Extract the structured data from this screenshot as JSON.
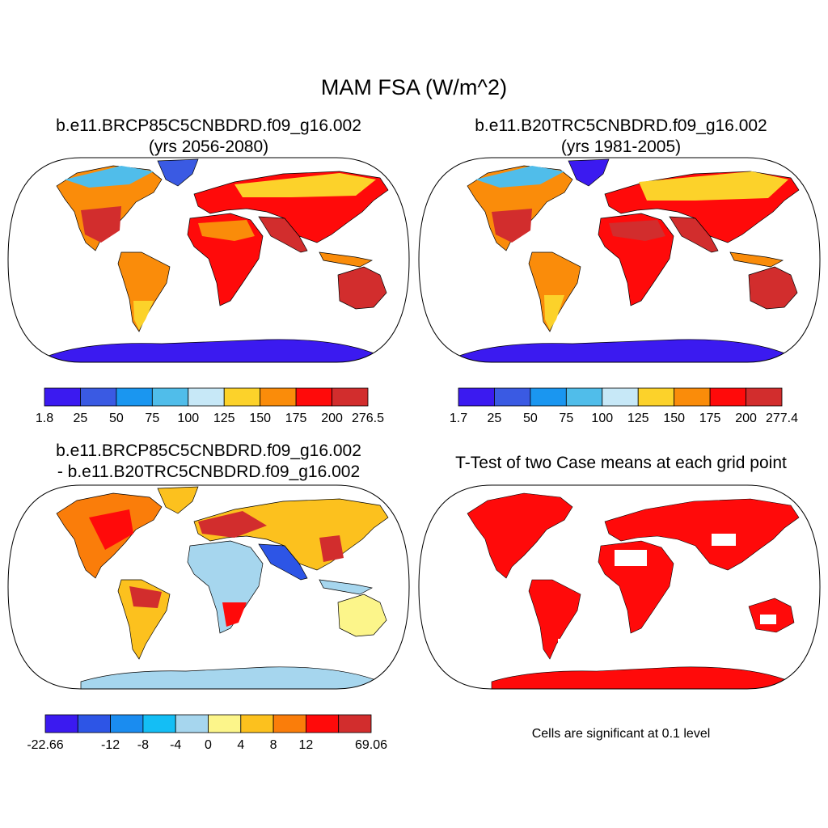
{
  "title": "MAM FSA (W/m^2)",
  "panels": [
    {
      "title_line1": "b.e11.BRCP85C5CNBDRD.f09_g16.002",
      "title_line2": "(yrs 2056-2080)",
      "colorbar": {
        "colors": [
          "#3b1af0",
          "#3a5ae3",
          "#1a96f0",
          "#50bdea",
          "#c7e8f7",
          "#fcd22a",
          "#fa8c0a",
          "#ff0a0a",
          "#d22d2d"
        ],
        "labels": [
          "1.8",
          "25",
          "50",
          "75",
          "100",
          "125",
          "150",
          "175",
          "200",
          "276.5"
        ]
      }
    },
    {
      "title_line1": "b.e11.B20TRC5CNBDRD.f09_g16.002",
      "title_line2": "(yrs 1981-2005)",
      "colorbar": {
        "colors": [
          "#3b1af0",
          "#3a5ae3",
          "#1a96f0",
          "#50bdea",
          "#c7e8f7",
          "#fcd22a",
          "#fa8c0a",
          "#ff0a0a",
          "#d22d2d"
        ],
        "labels": [
          "1.7",
          "25",
          "50",
          "75",
          "100",
          "125",
          "150",
          "175",
          "200",
          "277.4"
        ]
      }
    },
    {
      "title_line1": "b.e11.BRCP85C5CNBDRD.f09_g16.002",
      "title_line2": "- b.e11.B20TRC5CNBDRD.f09_g16.002",
      "colorbar": {
        "colors": [
          "#3b1af0",
          "#2d55e6",
          "#1a8cf0",
          "#14bef5",
          "#a6d6ee",
          "#fcf58a",
          "#fcc11e",
          "#fa7d0a",
          "#ff0a0a",
          "#d22d2d"
        ],
        "labels": [
          "-22.66",
          "",
          "-12",
          "-8",
          "-4",
          "0",
          "4",
          "8",
          "12",
          "",
          "69.06"
        ]
      }
    },
    {
      "title_line1": "T-Test of two Case means at each grid point",
      "note": "Cells are significant at 0.1 level",
      "sig_color": "#ff0a0a"
    }
  ]
}
